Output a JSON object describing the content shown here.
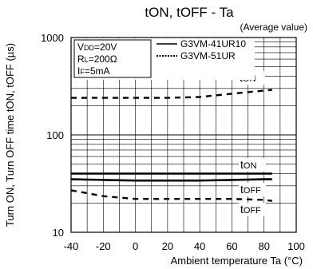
{
  "chart_data": {
    "type": "line",
    "title": "tON, tOFF - Ta",
    "subtitle": "(Average value)",
    "xlabel": "Ambient temperature Ta (°C)",
    "ylabel": "Turn ON, Turn OFF time tON, tOFF (µs)",
    "xlim": [
      -40,
      100
    ],
    "ylim": [
      10,
      1000
    ],
    "yscale": "log",
    "grid": true,
    "x_ticks": [
      "-40",
      "-20",
      "0",
      "20",
      "40",
      "60",
      "80",
      "100"
    ],
    "y_ticks": [
      "1000",
      "100",
      "10"
    ],
    "conditions": [
      "VDD=20V",
      "RL=200Ω",
      "IF=5mA"
    ],
    "legend": [
      {
        "label": "G3VM-41UR10",
        "style": "solid"
      },
      {
        "label": "G3VM-51UR",
        "style": "dashed"
      }
    ],
    "legend_position": "top-left",
    "series": [
      {
        "label": "tON",
        "style": "dashed",
        "x": [
          -40,
          -20,
          0,
          20,
          40,
          60,
          80,
          85
        ],
        "y": [
          240,
          240,
          240,
          240,
          245,
          265,
          285,
          290
        ]
      },
      {
        "label": "tON",
        "style": "solid",
        "x": [
          -40,
          -20,
          0,
          20,
          40,
          60,
          80,
          85
        ],
        "y": [
          40,
          40,
          40,
          40,
          40,
          40,
          40,
          40
        ]
      },
      {
        "label": "tOFF",
        "style": "solid",
        "x": [
          -40,
          -20,
          0,
          20,
          40,
          60,
          80,
          85
        ],
        "y": [
          35,
          34.5,
          34,
          34,
          34,
          34.5,
          35,
          35
        ]
      },
      {
        "label": "tOFF",
        "style": "dashed",
        "x": [
          -40,
          -20,
          0,
          20,
          40,
          60,
          80,
          85
        ],
        "y": [
          27,
          23.5,
          22,
          22,
          22,
          22,
          21.5,
          21
        ]
      }
    ]
  }
}
